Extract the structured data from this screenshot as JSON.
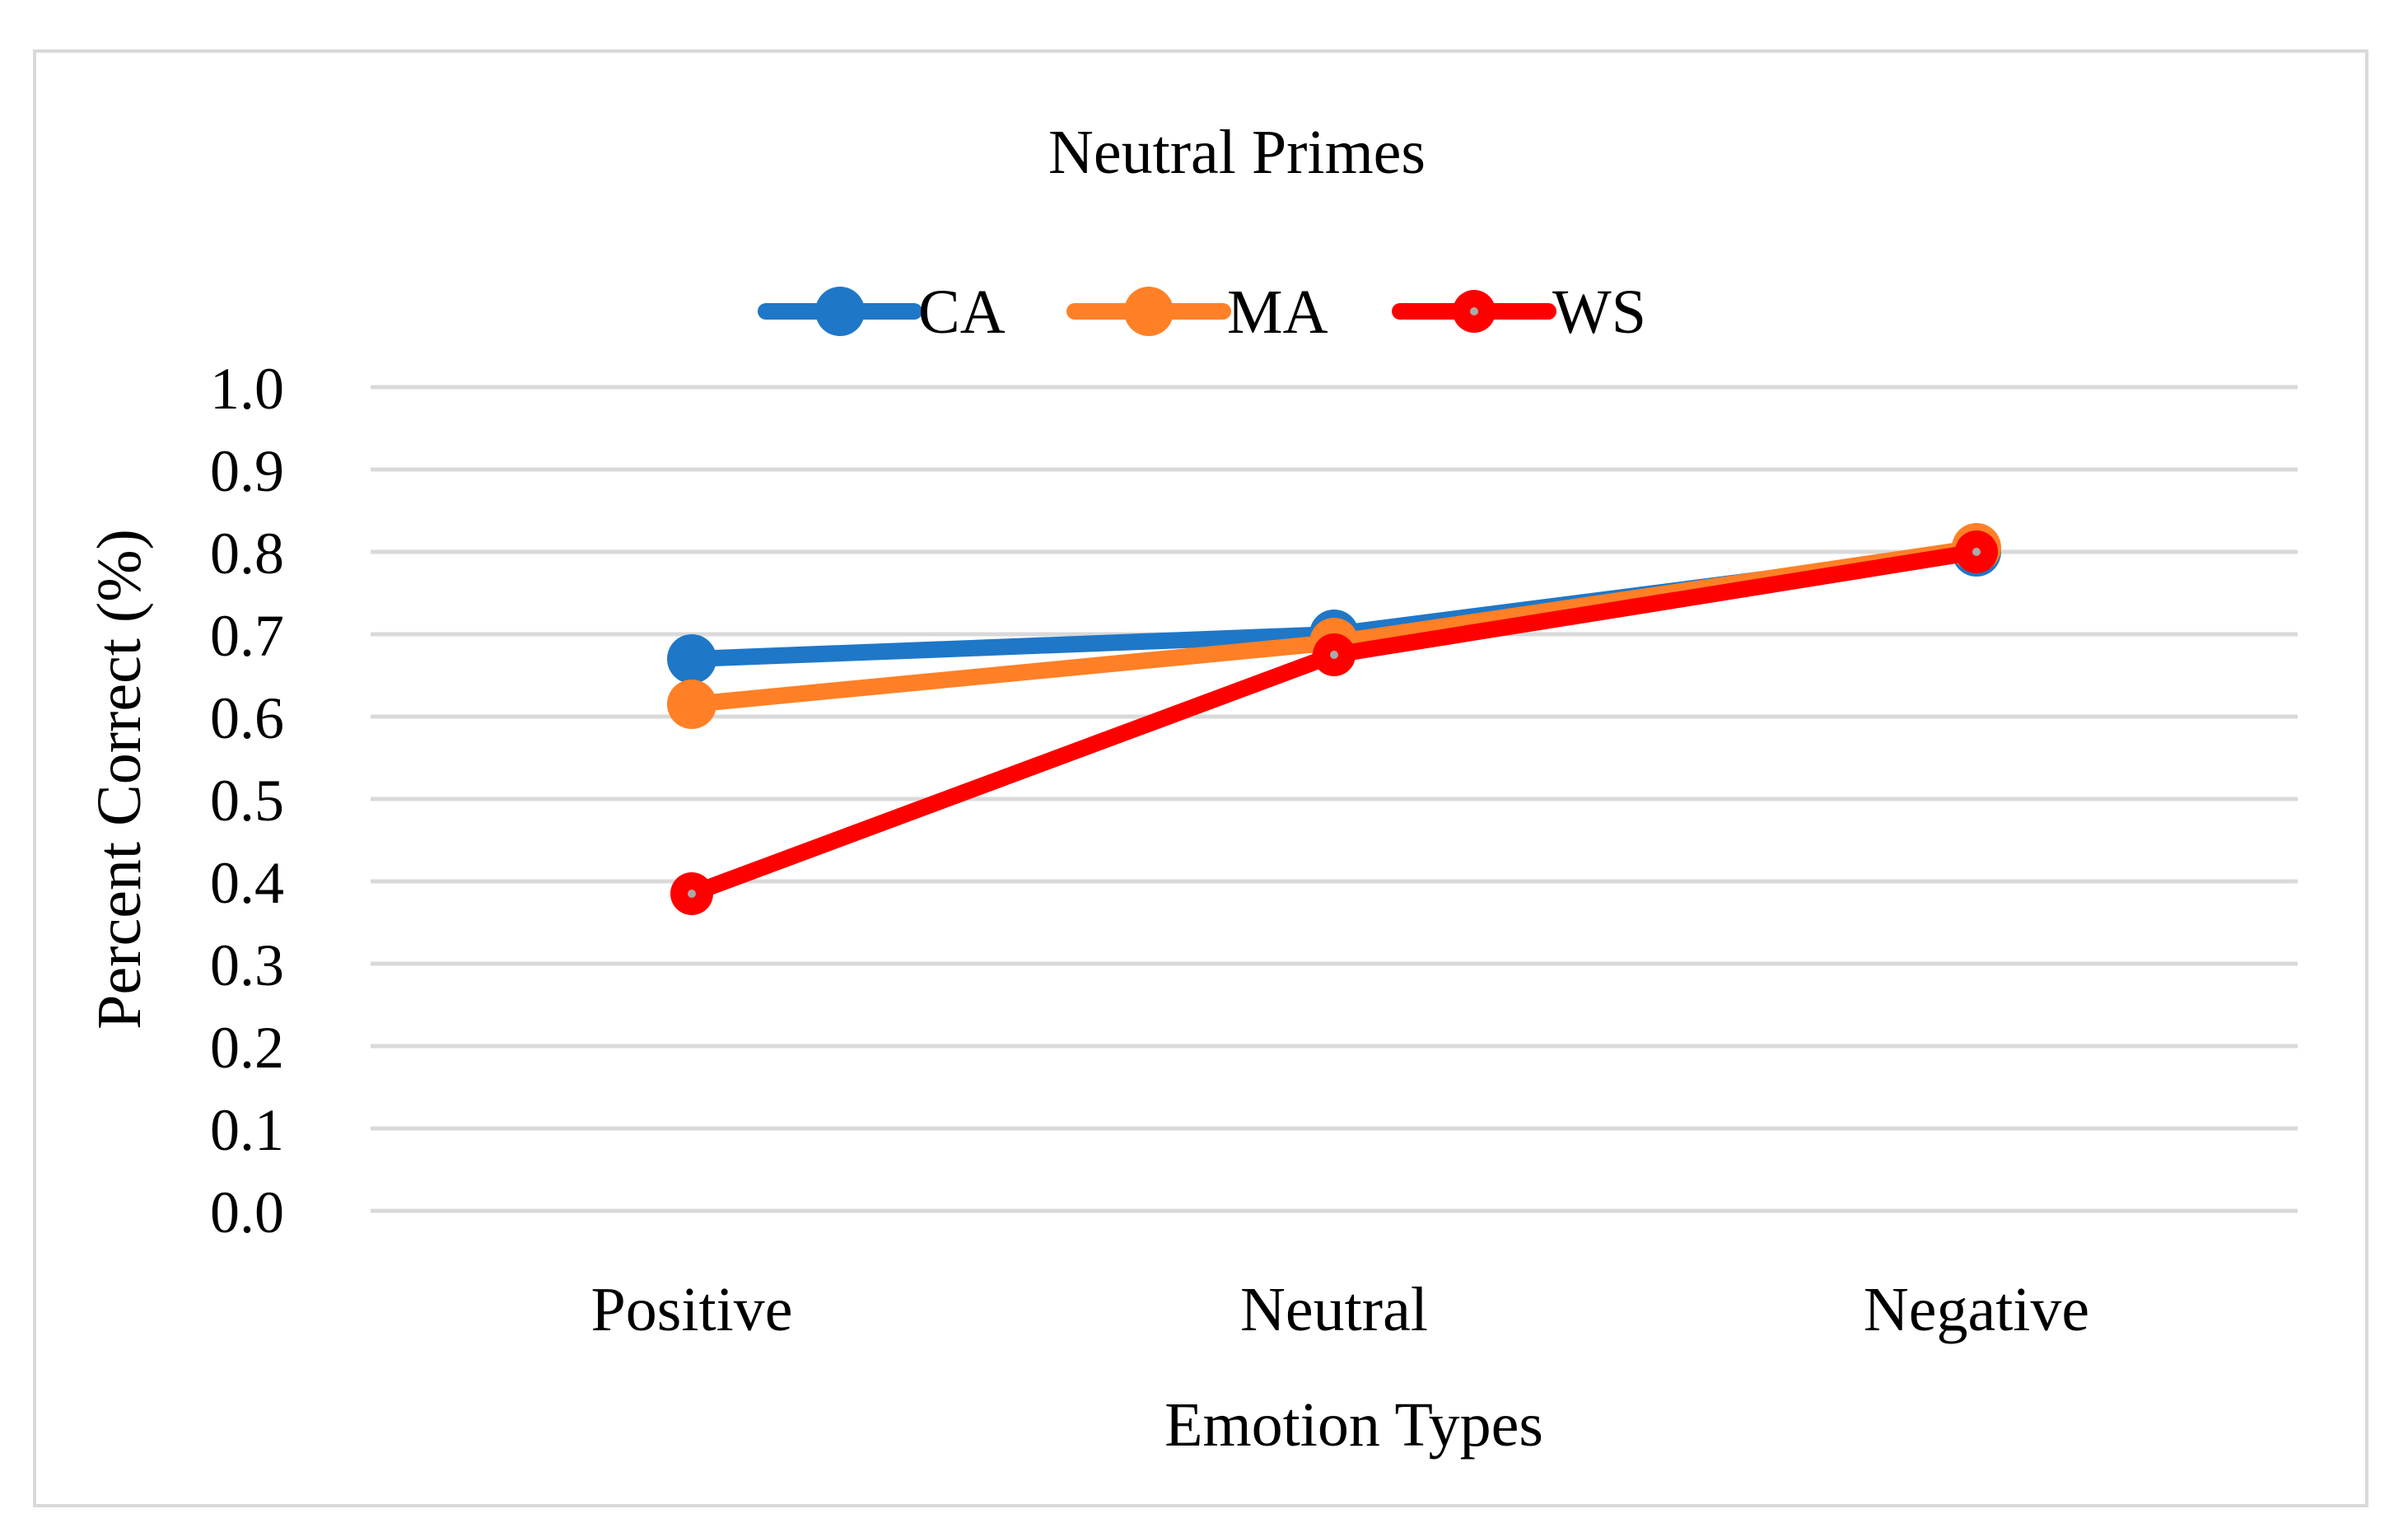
{
  "chart_data": {
    "type": "line",
    "title": "Neutral Primes",
    "xlabel": "Emotion Types",
    "ylabel": "Percent Correct (%)",
    "categories": [
      "Positive",
      "Neutral",
      "Negative"
    ],
    "ylim": [
      0.0,
      1.0
    ],
    "yticks": [
      "0.0",
      "0.1",
      "0.2",
      "0.3",
      "0.4",
      "0.5",
      "0.6",
      "0.7",
      "0.8",
      "0.9",
      "1.0"
    ],
    "grid": true,
    "legend_position": "top",
    "series": [
      {
        "name": "CA",
        "color": "#1f77c8",
        "values": [
          0.67,
          0.7,
          0.8
        ]
      },
      {
        "name": "MA",
        "color": "#ff8026",
        "values": [
          0.615,
          0.69,
          0.805
        ]
      },
      {
        "name": "WS",
        "color": "#ff0000",
        "values": [
          0.385,
          0.675,
          0.8
        ]
      }
    ]
  }
}
